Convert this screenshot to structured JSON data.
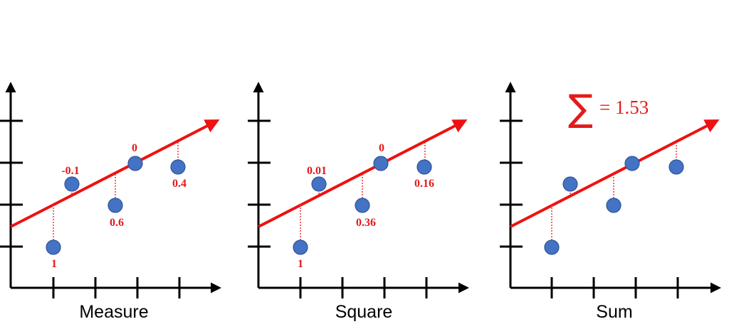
{
  "panels": [
    {
      "caption": "Measure",
      "points": [
        {
          "label": "1"
        },
        {
          "label": "-0.1"
        },
        {
          "label": "0.6"
        },
        {
          "label": "0"
        },
        {
          "label": "0.4"
        }
      ]
    },
    {
      "caption": "Square",
      "points": [
        {
          "label": "1"
        },
        {
          "label": "0.01"
        },
        {
          "label": "0.36"
        },
        {
          "label": "0"
        },
        {
          "label": "0.16"
        }
      ]
    },
    {
      "caption": "Sum",
      "points": [
        {
          "label": ""
        },
        {
          "label": ""
        },
        {
          "label": ""
        },
        {
          "label": ""
        },
        {
          "label": ""
        }
      ]
    }
  ],
  "sum": {
    "symbol": "∑",
    "text": "= 1.53"
  },
  "colors": {
    "line": "#ee1111",
    "point": "#4472c4",
    "label": "#e21b1b"
  }
}
